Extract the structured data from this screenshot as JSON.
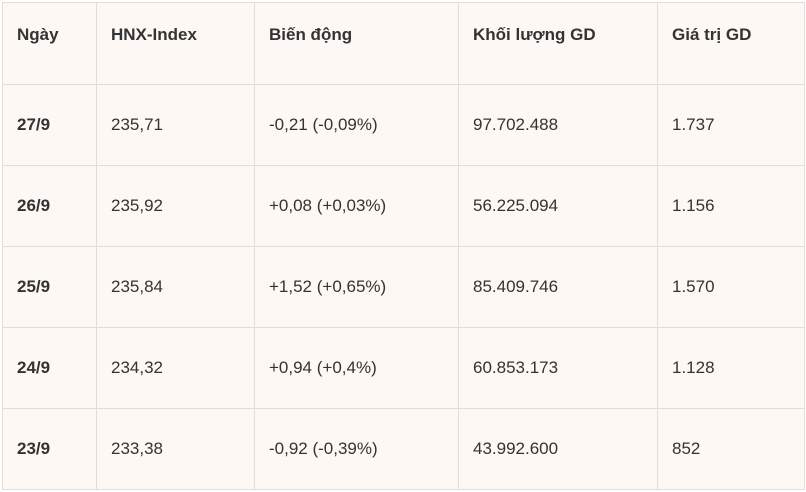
{
  "table": {
    "headers": [
      "Ngày",
      "HNX-Index",
      "Biến động",
      "Khối lượng GD",
      "Giá trị GD"
    ],
    "rows": [
      {
        "date": "27/9",
        "index": "235,71",
        "change": "-0,21 (-0,09%)",
        "volume": "97.702.488",
        "value": "1.737"
      },
      {
        "date": "26/9",
        "index": "235,92",
        "change": "+0,08 (+0,03%)",
        "volume": "56.225.094",
        "value": "1.156"
      },
      {
        "date": "25/9",
        "index": "235,84",
        "change": "+1,52 (+0,65%)",
        "volume": "85.409.746",
        "value": "1.570"
      },
      {
        "date": "24/9",
        "index": "234,32",
        "change": "+0,94 (+0,4%)",
        "volume": "60.853.173",
        "value": "1.128"
      },
      {
        "date": "23/9",
        "index": "233,38",
        "change": "-0,92 (-0,39%)",
        "volume": "43.992.600",
        "value": "852"
      }
    ]
  },
  "colors": {
    "background": "#fdf8f4",
    "border": "#e2ddd9",
    "text": "#333333"
  }
}
